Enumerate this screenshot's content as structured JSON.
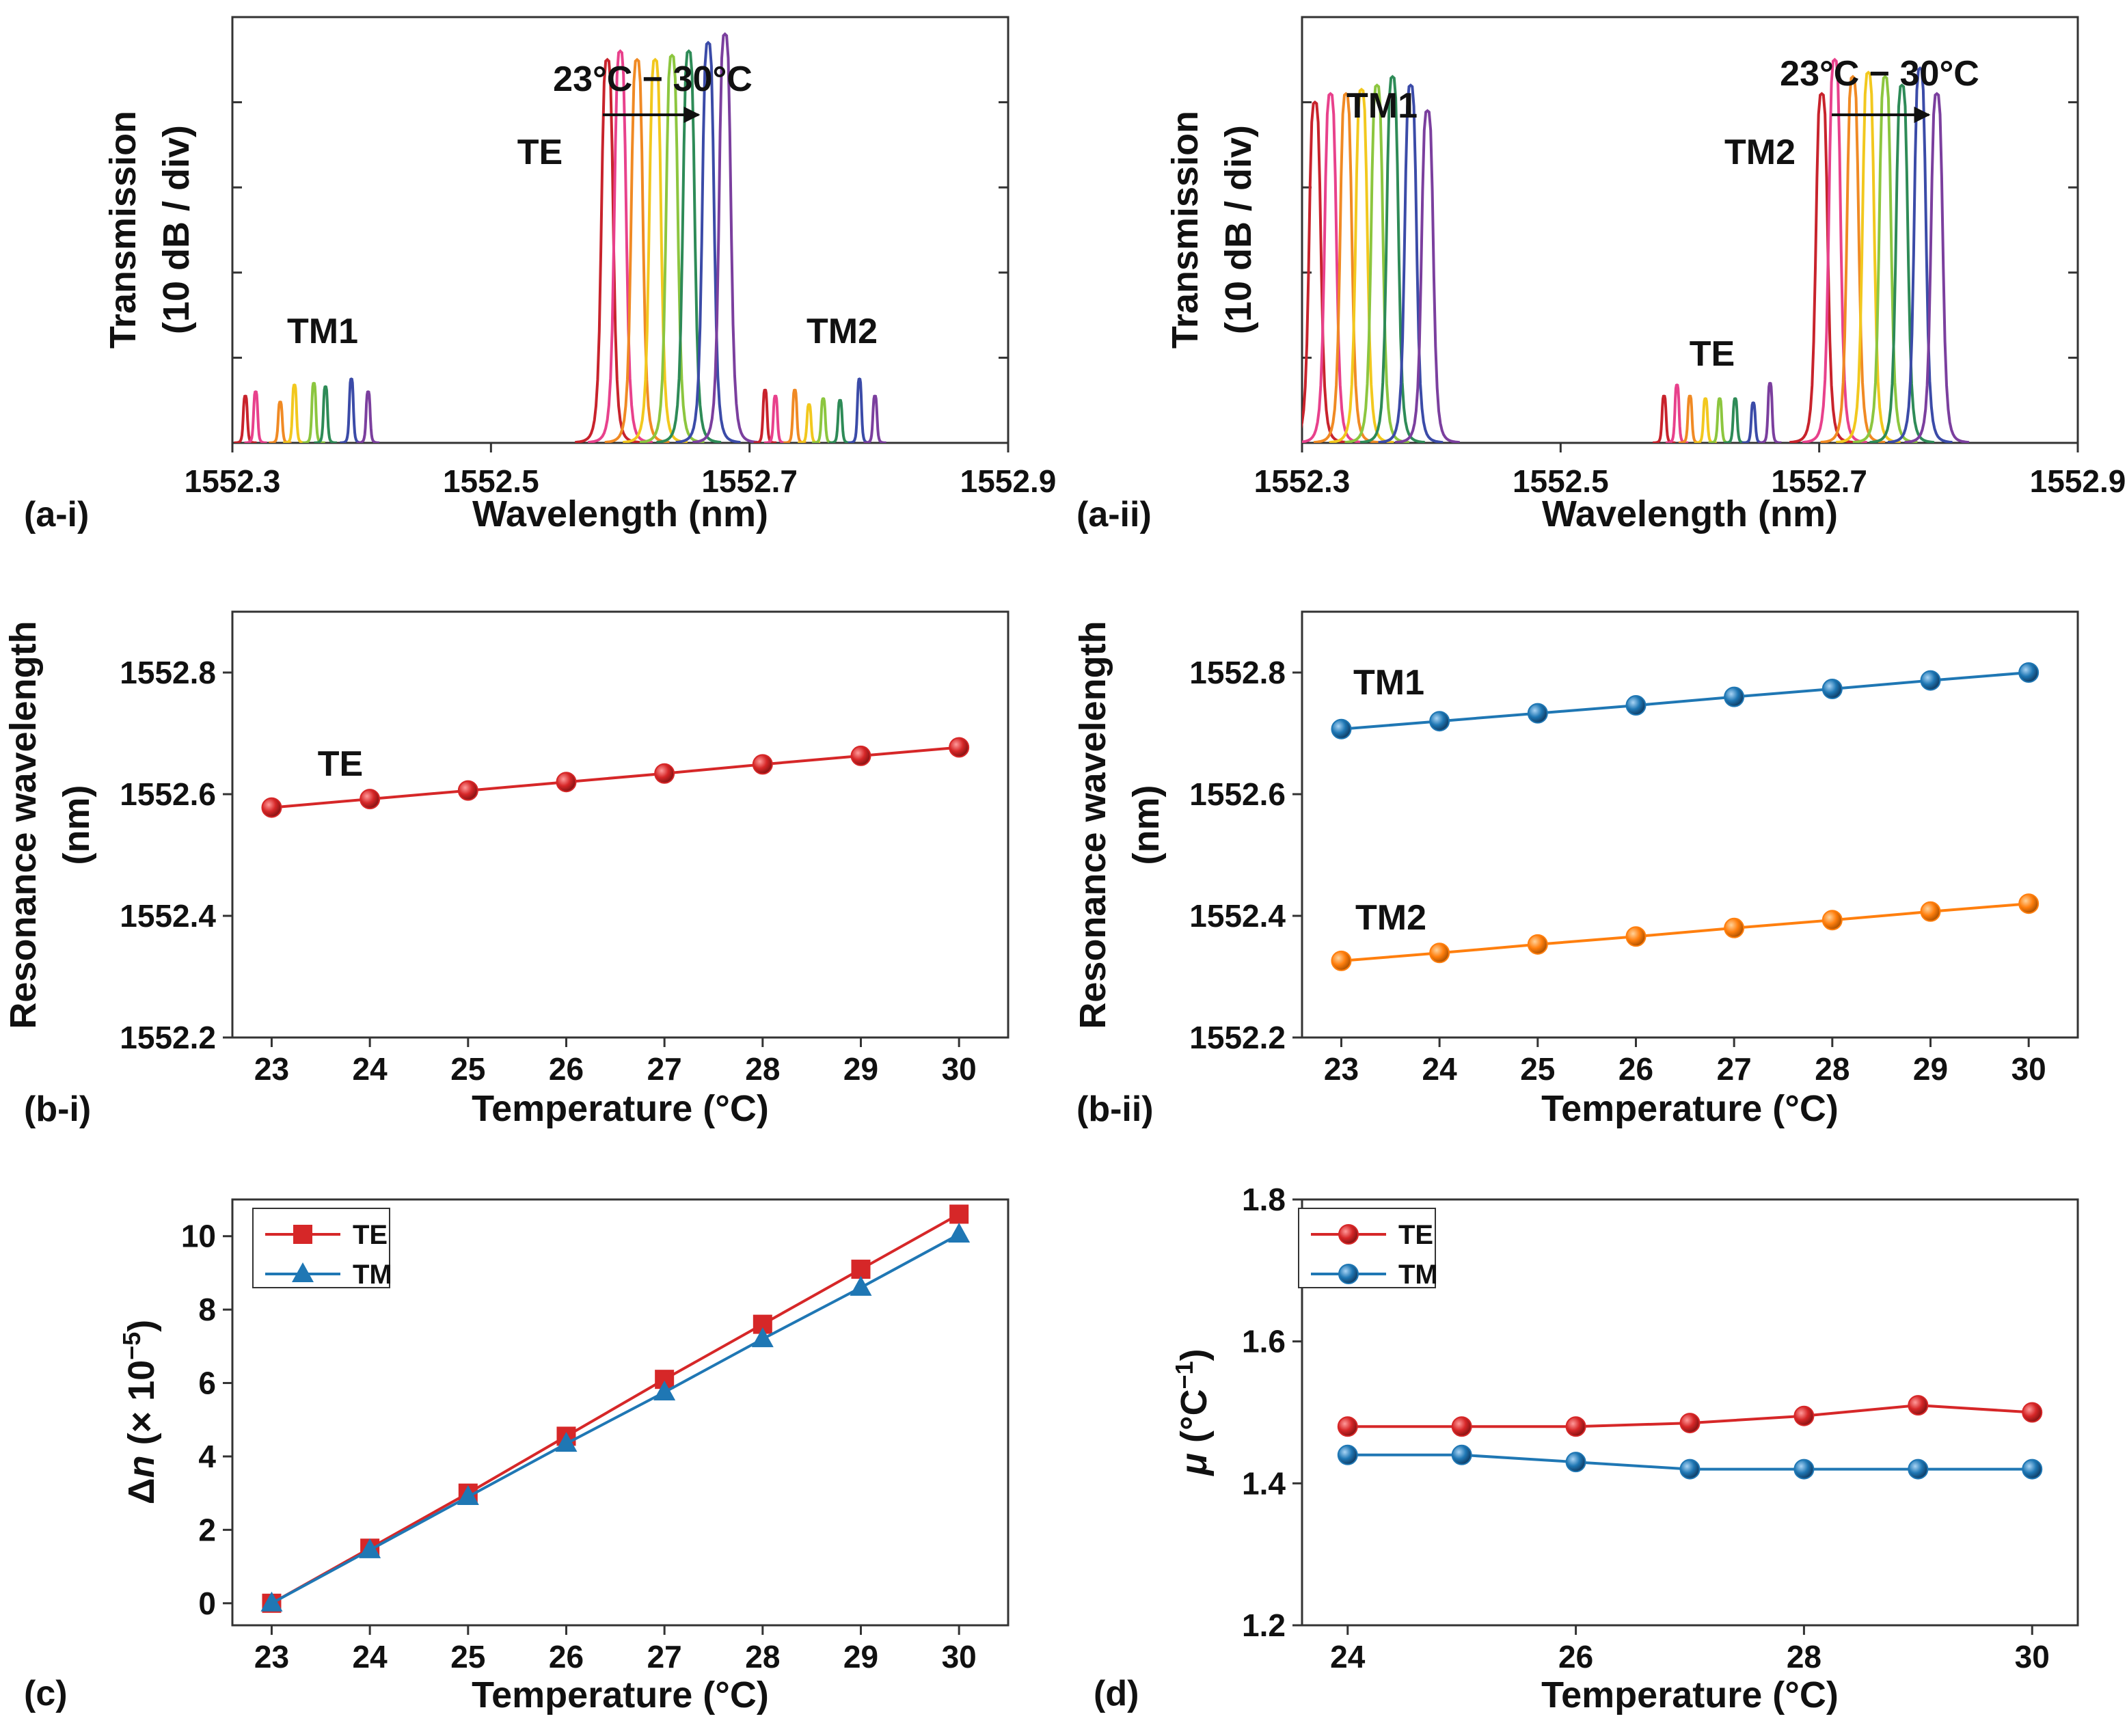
{
  "chart_data": [
    {
      "id": "a-i",
      "type": "line",
      "panel_label": "(a-i)",
      "xlabel": "Wavelength (nm)",
      "ylabel": [
        "Transmission",
        "(10 dB / div)"
      ],
      "xlim": [
        1552.3,
        1552.9
      ],
      "xticks": [
        "1552.3",
        "1552.5",
        "1552.7",
        "1552.9"
      ],
      "ylim": [
        0,
        5
      ],
      "ytick_values": [
        1,
        2,
        3,
        4
      ],
      "annotations": [
        "TM1",
        "TE",
        "TM2",
        "23°C − 30°C"
      ],
      "peak_groups": [
        {
          "name": "TM1",
          "centers": [
            1552.31,
            1552.318,
            1552.337,
            1552.348,
            1552.363,
            1552.372,
            1552.392,
            1552.405
          ],
          "heights": [
            0.55,
            0.6,
            0.48,
            0.68,
            0.7,
            0.66,
            0.75,
            0.6
          ],
          "width": 0.0035
        },
        {
          "name": "TE",
          "centers": [
            1552.59,
            1552.6,
            1552.613,
            1552.627,
            1552.64,
            1552.653,
            1552.668,
            1552.681
          ],
          "heights": [
            4.5,
            4.6,
            4.5,
            4.5,
            4.55,
            4.6,
            4.7,
            4.8
          ],
          "width": 0.01
        },
        {
          "name": "TM2",
          "centers": [
            1552.712,
            1552.72,
            1552.735,
            1552.746,
            1552.757,
            1552.77,
            1552.785,
            1552.797
          ],
          "heights": [
            0.62,
            0.55,
            0.62,
            0.45,
            0.52,
            0.5,
            0.75,
            0.55
          ],
          "width": 0.0035
        }
      ]
    },
    {
      "id": "a-ii",
      "type": "line",
      "panel_label": "(a-ii)",
      "xlabel": "Wavelength (nm)",
      "ylabel": [
        "Transmission",
        "(10 dB / div)"
      ],
      "xlim": [
        1552.3,
        1552.9
      ],
      "xticks": [
        "1552.3",
        "1552.5",
        "1552.7",
        "1552.9"
      ],
      "ylim": [
        0,
        5
      ],
      "ytick_values": [
        1,
        2,
        3,
        4
      ],
      "annotations": [
        "TM1",
        "TE",
        "TM2",
        "23°C − 30°C"
      ],
      "peak_groups": [
        {
          "name": "TM1",
          "centers": [
            1552.31,
            1552.322,
            1552.334,
            1552.346,
            1552.358,
            1552.37,
            1552.384,
            1552.397
          ],
          "heights": [
            4.0,
            4.1,
            4.1,
            4.15,
            4.2,
            4.3,
            4.2,
            3.9
          ],
          "width": 0.01
        },
        {
          "name": "TE",
          "centers": [
            1552.58,
            1552.59,
            1552.6,
            1552.612,
            1552.623,
            1552.635,
            1552.649,
            1552.662
          ],
          "heights": [
            0.55,
            0.68,
            0.55,
            0.52,
            0.52,
            0.52,
            0.47,
            0.7
          ],
          "width": 0.0035
        },
        {
          "name": "TM2",
          "centers": [
            1552.702,
            1552.712,
            1552.726,
            1552.738,
            1552.751,
            1552.764,
            1552.778,
            1552.791
          ],
          "heights": [
            4.1,
            4.5,
            4.3,
            4.35,
            4.3,
            4.2,
            4.4,
            4.1
          ],
          "width": 0.01
        }
      ]
    },
    {
      "id": "b-i",
      "type": "line",
      "panel_label": "(b-i)",
      "xlabel": "Temperature (°C)",
      "ylabel": [
        "Resonance wavelength",
        "(nm)"
      ],
      "xlim": [
        22.6,
        30.5
      ],
      "ylim": [
        1552.2,
        1552.9
      ],
      "xticks": [
        "23",
        "24",
        "25",
        "26",
        "27",
        "28",
        "29",
        "30"
      ],
      "yticks": [
        "1552.2",
        "1552.4",
        "1552.6",
        "1552.8"
      ],
      "series": [
        {
          "name": "TE",
          "color": "#d62728",
          "x": [
            23,
            24,
            25,
            26,
            27,
            28,
            29,
            30
          ],
          "y": [
            1552.578,
            1552.592,
            1552.606,
            1552.62,
            1552.634,
            1552.649,
            1552.663,
            1552.677
          ]
        }
      ]
    },
    {
      "id": "b-ii",
      "type": "line",
      "panel_label": "(b-ii)",
      "xlabel": "Temperature (°C)",
      "ylabel": [
        "Resonance wavelength",
        "(nm)"
      ],
      "xlim": [
        22.6,
        30.5
      ],
      "ylim": [
        1552.2,
        1552.9
      ],
      "xticks": [
        "23",
        "24",
        "25",
        "26",
        "27",
        "28",
        "29",
        "30"
      ],
      "yticks": [
        "1552.2",
        "1552.4",
        "1552.6",
        "1552.8"
      ],
      "series": [
        {
          "name": "TM1",
          "color": "#1f77b4",
          "x": [
            23,
            24,
            25,
            26,
            27,
            28,
            29,
            30
          ],
          "y": [
            1552.707,
            1552.72,
            1552.733,
            1552.746,
            1552.76,
            1552.773,
            1552.787,
            1552.8
          ]
        },
        {
          "name": "TM2",
          "color": "#ff7f0e",
          "x": [
            23,
            24,
            25,
            26,
            27,
            28,
            29,
            30
          ],
          "y": [
            1552.326,
            1552.339,
            1552.353,
            1552.366,
            1552.38,
            1552.393,
            1552.407,
            1552.42
          ]
        }
      ]
    },
    {
      "id": "c",
      "type": "line",
      "panel_label": "(c)",
      "xlabel": "Temperature (°C)",
      "ylabel_parts": [
        "Δ",
        "n",
        " (× 10",
        "−5",
        ")"
      ],
      "xlim": [
        22.6,
        30.5
      ],
      "ylim": [
        -0.6,
        11
      ],
      "xticks": [
        "23",
        "24",
        "25",
        "26",
        "27",
        "28",
        "29",
        "30"
      ],
      "yticks": [
        "0",
        "2",
        "4",
        "6",
        "8",
        "10"
      ],
      "legend_position": "top-left",
      "series": [
        {
          "name": "TE",
          "marker": "square",
          "color": "#d62728",
          "x": [
            23,
            24,
            25,
            26,
            27,
            28,
            29,
            30
          ],
          "y": [
            0.0,
            1.5,
            3.0,
            4.55,
            6.1,
            7.6,
            9.1,
            10.6
          ]
        },
        {
          "name": "TM",
          "marker": "triangle",
          "color": "#1f77b4",
          "x": [
            23,
            24,
            25,
            26,
            27,
            28,
            29,
            30
          ],
          "y": [
            0.0,
            1.45,
            2.9,
            4.35,
            5.75,
            7.2,
            8.6,
            10.05
          ]
        }
      ]
    },
    {
      "id": "d",
      "type": "line",
      "panel_label": "(d)",
      "xlabel": "Temperature (°C)",
      "ylabel_parts": [
        "μ",
        " (°C",
        "−1",
        ")"
      ],
      "xlim": [
        23.6,
        30.4
      ],
      "ylim": [
        1.2,
        1.8
      ],
      "xticks": [
        "24",
        "26",
        "28",
        "30"
      ],
      "yticks": [
        "1.2",
        "1.4",
        "1.6",
        "1.8"
      ],
      "legend_position": "top-left",
      "series": [
        {
          "name": "TE",
          "marker": "circle",
          "color": "#d62728",
          "x": [
            24,
            25,
            26,
            27,
            28,
            29,
            30
          ],
          "y": [
            1.48,
            1.48,
            1.48,
            1.485,
            1.495,
            1.51,
            1.5
          ]
        },
        {
          "name": "TM",
          "marker": "circle",
          "color": "#1f77b4",
          "x": [
            24,
            25,
            26,
            27,
            28,
            29,
            30
          ],
          "y": [
            1.44,
            1.44,
            1.43,
            1.42,
            1.42,
            1.42,
            1.42
          ]
        }
      ]
    }
  ],
  "temperature_colors": [
    "#c8232c",
    "#e8418c",
    "#f08a24",
    "#f2c81e",
    "#8cc63f",
    "#2e8b57",
    "#3b4ba8",
    "#7b3f9e"
  ]
}
